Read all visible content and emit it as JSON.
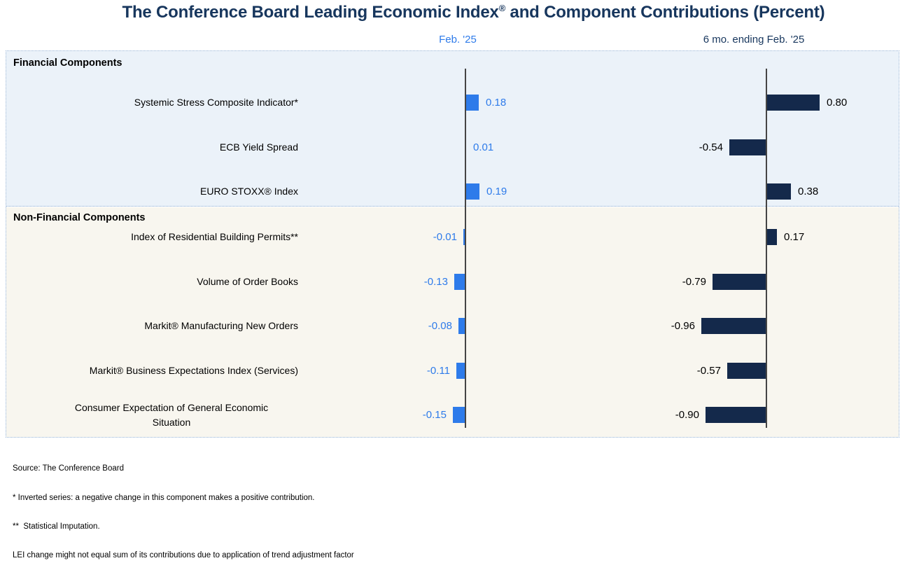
{
  "title": {
    "main": "The Conference Board Leading Economic Index",
    "sup": "®",
    "rest": " and Component Contributions (Percent)"
  },
  "columns": [
    {
      "name": "Feb. '25"
    },
    {
      "name": "6 mo. ending Feb. '25"
    }
  ],
  "colors": {
    "feb_accent": "#2E7BEA",
    "six_mo_accent": "#14294B",
    "title_navy": "#17365D",
    "financial_bg": "#EBF2F9",
    "nonfinancial_bg": "#F8F6EF"
  },
  "notes": [
    "Source: The Conference Board",
    "* Inverted series: a negative change in this component makes a positive contribution.",
    "**  Statistical Imputation.",
    "LEI change might not equal sum of its contributions due to application of trend adjustment factor"
  ],
  "chart_data": {
    "type": "bar",
    "orientation": "horizontal",
    "title": "The Conference Board Leading Economic Index® and Component Contributions (Percent)",
    "value_labels": true,
    "grid": false,
    "legend_position": "column headers above chart",
    "series": [
      {
        "name": "Feb. '25",
        "color": "#2E7BEA"
      },
      {
        "name": "6 mo. ending Feb. '25",
        "color": "#14294B"
      }
    ],
    "sections": [
      {
        "label": "Financial Components",
        "rows": [
          {
            "label": "Systemic Stress Composite Indicator*",
            "feb": 0.18,
            "six_mo": 0.8
          },
          {
            "label": "ECB Yield Spread",
            "feb": 0.01,
            "six_mo": -0.54
          },
          {
            "label": "EURO STOXX® Index",
            "feb": 0.19,
            "six_mo": 0.38
          }
        ]
      },
      {
        "label": "Non-Financial Components",
        "rows": [
          {
            "label": "Index of Residential Building Permits**",
            "feb": -0.01,
            "six_mo": 0.17
          },
          {
            "label": "Volume of Order Books",
            "feb": -0.13,
            "six_mo": -0.79
          },
          {
            "label": "Markit® Manufacturing New Orders",
            "feb": -0.08,
            "six_mo": -0.96
          },
          {
            "label": "Markit® Business Expectations Index (Services)",
            "feb": -0.11,
            "six_mo": -0.57
          },
          {
            "label": "Consumer Expectation of General Economic\nSituation",
            "feb": -0.15,
            "six_mo": -0.9
          }
        ]
      }
    ]
  }
}
